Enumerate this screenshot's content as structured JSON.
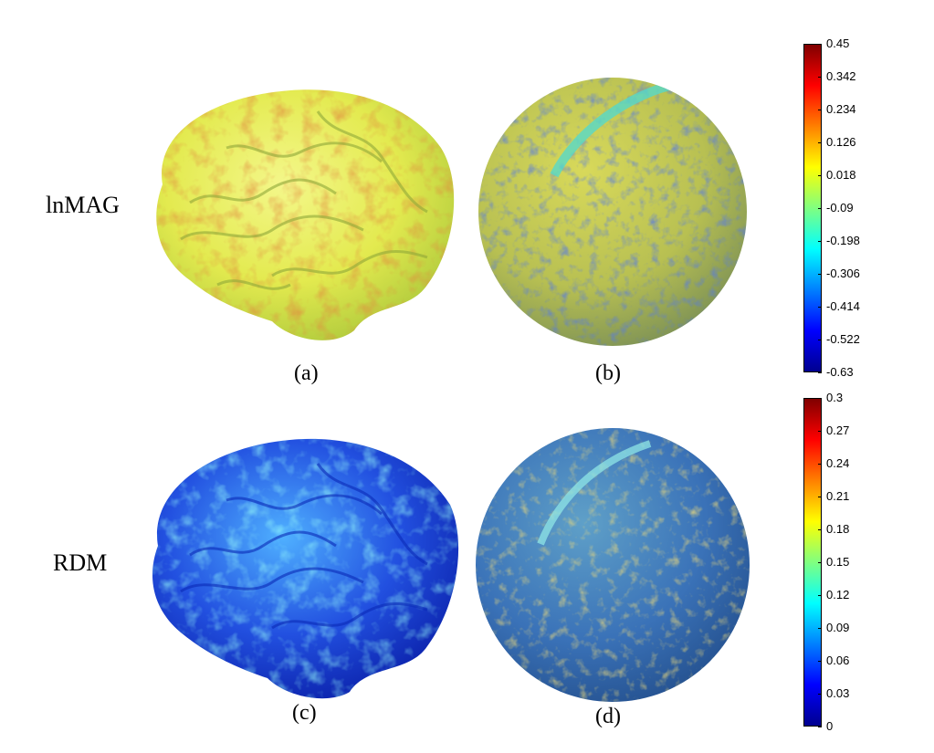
{
  "rows": [
    {
      "label": "lnMAG",
      "panels": [
        "(a)",
        "(b)"
      ]
    },
    {
      "label": "RDM",
      "panels": [
        "(c)",
        "(d)"
      ]
    }
  ],
  "colorbars": [
    {
      "ticks": [
        "0.45",
        "0.342",
        "0.234",
        "0.126",
        "0.018",
        "-0.09",
        "-0.198",
        "-0.306",
        "-0.414",
        "-0.522",
        "-0.63"
      ]
    },
    {
      "ticks": [
        "0.3",
        "0.27",
        "0.24",
        "0.21",
        "0.18",
        "0.15",
        "0.12",
        "0.09",
        "0.06",
        "0.03",
        "0"
      ]
    }
  ],
  "colors": {
    "jet": [
      "#00008f",
      "#0000ff",
      "#0080ff",
      "#00ffff",
      "#80ff80",
      "#ffff00",
      "#ff8000",
      "#ff0000",
      "#800000"
    ],
    "brain_top_base": "#e6ee55",
    "brain_bottom_base": "#1a3fd6",
    "sphere_top_base": "#c9cc4a",
    "sphere_bottom_base": "#3d7fc9"
  }
}
